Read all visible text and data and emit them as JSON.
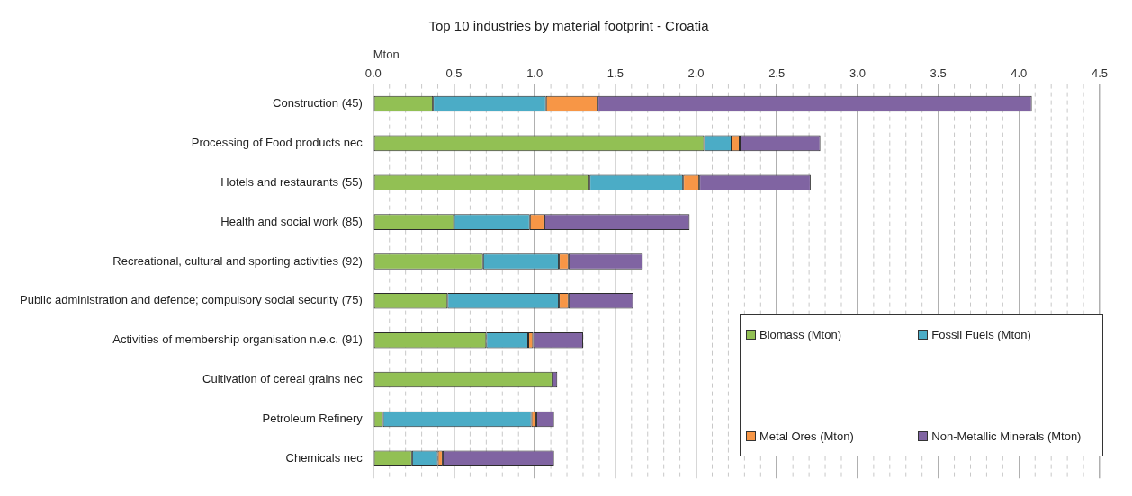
{
  "chart_data": {
    "type": "bar",
    "orientation": "horizontal",
    "stacked": true,
    "title": "Top 10 industries by material footprint - Croatia",
    "xlabel": "Mton",
    "categories": [
      "Construction (45)",
      "Processing of Food products nec",
      "Hotels and restaurants (55)",
      "Health and social work (85)",
      "Recreational, cultural and sporting activities (92)",
      "Public administration and defence; compulsory social security (75)",
      "Activities of membership organisation n.e.c. (91)",
      "Cultivation of cereal grains nec",
      "Petroleum Refinery",
      "Chemicals nec"
    ],
    "series": [
      {
        "name": "Biomass (Mton)",
        "color": "#92c054",
        "values": [
          0.37,
          2.05,
          1.34,
          0.5,
          0.68,
          0.46,
          0.7,
          1.11,
          0.06,
          0.24
        ]
      },
      {
        "name": "Fossil Fuels  (Mton)",
        "color": "#4bacc6",
        "values": [
          0.7,
          0.17,
          0.58,
          0.47,
          0.47,
          0.69,
          0.26,
          null,
          0.92,
          0.16
        ]
      },
      {
        "name": "Metal Ores (Mton)",
        "color": "#f79646",
        "values": [
          0.32,
          0.05,
          0.1,
          0.09,
          0.06,
          0.06,
          0.03,
          null,
          0.03,
          0.03
        ]
      },
      {
        "name": "Non-Metallic Minerals (Mton)",
        "color": "#8064a2",
        "values": [
          2.69,
          0.5,
          0.69,
          0.9,
          0.46,
          0.4,
          0.31,
          0.03,
          0.11,
          0.69
        ]
      }
    ],
    "xlim": [
      0,
      4.5
    ],
    "xticks": [
      {
        "value": 0,
        "label": "0.0"
      },
      {
        "value": 0.1,
        "label": null
      },
      {
        "value": 0.2,
        "label": null
      },
      {
        "value": 0.3,
        "label": null
      },
      {
        "value": 0.4,
        "label": null
      },
      {
        "value": 0.5,
        "label": "0.5"
      },
      {
        "value": 0.6,
        "label": null
      },
      {
        "value": 0.7,
        "label": null
      },
      {
        "value": 0.8,
        "label": null
      },
      {
        "value": 0.9,
        "label": null
      },
      {
        "value": 1.0,
        "label": "1.0"
      },
      {
        "value": 1.1,
        "label": null
      },
      {
        "value": 1.2,
        "label": null
      },
      {
        "value": 1.3,
        "label": null
      },
      {
        "value": 1.4,
        "label": null
      },
      {
        "value": 1.5,
        "label": "1.5"
      },
      {
        "value": 1.6,
        "label": null
      },
      {
        "value": 1.7,
        "label": null
      },
      {
        "value": 1.8,
        "label": null
      },
      {
        "value": 1.9,
        "label": null
      },
      {
        "value": 2.0,
        "label": "2.0"
      },
      {
        "value": 2.1,
        "label": null
      },
      {
        "value": 2.2,
        "label": null
      },
      {
        "value": 2.3,
        "label": null
      },
      {
        "value": 2.4,
        "label": null
      },
      {
        "value": 2.5,
        "label": "2.5"
      },
      {
        "value": 2.6,
        "label": null
      },
      {
        "value": 2.7,
        "label": null
      },
      {
        "value": 2.8,
        "label": null
      },
      {
        "value": 2.9,
        "label": null
      },
      {
        "value": 3.0,
        "label": "3.0"
      },
      {
        "value": 3.1,
        "label": null
      },
      {
        "value": 3.2,
        "label": null
      },
      {
        "value": 3.3,
        "label": null
      },
      {
        "value": 3.4,
        "label": null
      },
      {
        "value": 3.5,
        "label": "3.5"
      },
      {
        "value": 3.6,
        "label": null
      },
      {
        "value": 3.7,
        "label": null
      },
      {
        "value": 3.8,
        "label": null
      },
      {
        "value": 3.9,
        "label": null
      },
      {
        "value": 4.0,
        "label": "4.0"
      },
      {
        "value": 4.1,
        "label": null
      },
      {
        "value": 4.2,
        "label": null
      },
      {
        "value": 4.3,
        "label": null
      },
      {
        "value": 4.4,
        "label": null
      },
      {
        "value": 4.5,
        "label": "4.5"
      }
    ],
    "grid": "x",
    "legend": "bottom right"
  }
}
